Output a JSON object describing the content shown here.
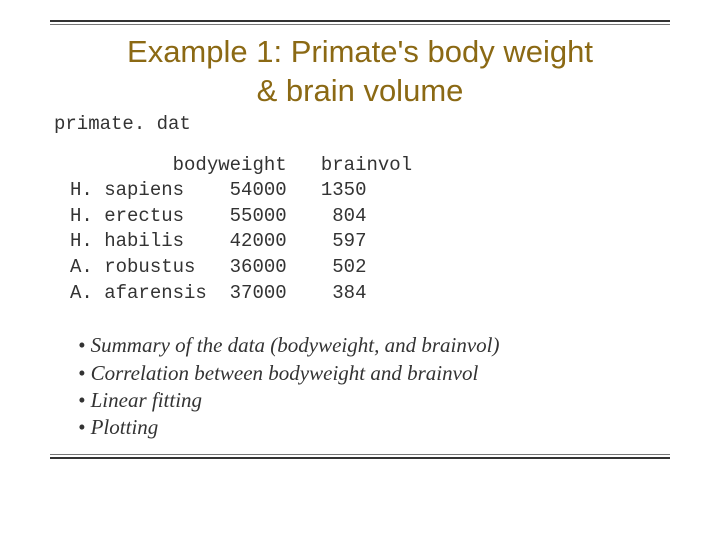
{
  "title_line1": "Example 1: Primate's body weight",
  "title_line2": "& brain volume",
  "filename": "primate. dat",
  "table": {
    "header": {
      "col1": "bodyweight",
      "col2": "brainvol"
    },
    "rows": [
      {
        "species": "H. sapiens",
        "bodyweight": "54000",
        "brainvol": "1350"
      },
      {
        "species": "H. erectus",
        "bodyweight": "55000",
        "brainvol": " 804"
      },
      {
        "species": "H. habilis",
        "bodyweight": "42000",
        "brainvol": " 597"
      },
      {
        "species": "A. robustus",
        "bodyweight": "36000",
        "brainvol": " 502"
      },
      {
        "species": "A. afarensis",
        "bodyweight": "37000",
        "brainvol": " 384"
      }
    ]
  },
  "bullets": [
    "Summary of the data (bodyweight, and brainvol)",
    "Correlation between bodyweight and brainvol",
    "Linear fitting",
    "Plotting"
  ],
  "colors": {
    "title_color": "#8b6914",
    "rule_color": "#333333",
    "text_color": "#333333",
    "background": "#ffffff"
  },
  "font_sizes": {
    "title": 31,
    "mono": 19,
    "bullets": 21
  }
}
